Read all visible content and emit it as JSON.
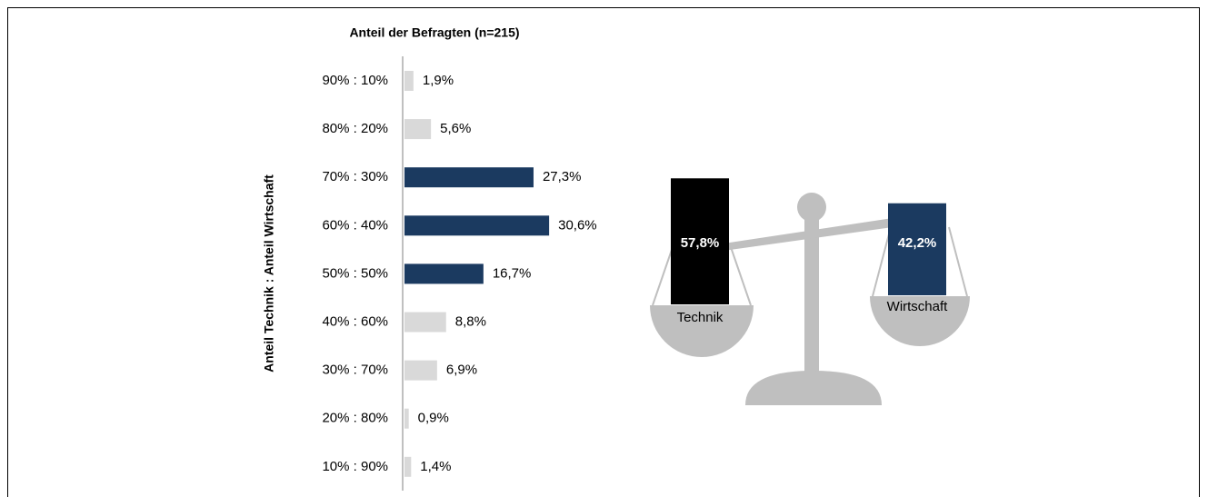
{
  "chart_data": [
    {
      "type": "bar",
      "orientation": "horizontal",
      "title": "Anteil der Befragten  (n=215)",
      "y_label": "Anteil Technik : Anteil Wirtschaft",
      "categories": [
        "90% : 10%",
        "80% : 20%",
        "70% : 30%",
        "60% : 40%",
        "50% : 50%",
        "40% : 60%",
        "30% : 70%",
        "20% : 80%",
        "10% : 90%"
      ],
      "values": [
        1.9,
        5.6,
        27.3,
        30.6,
        16.7,
        8.8,
        6.9,
        0.9,
        1.4
      ],
      "value_labels": [
        "1,9%",
        "5,6%",
        "27,3%",
        "30,6%",
        "16,7%",
        "8,8%",
        "6,9%",
        "0,9%",
        "1,4%"
      ],
      "colors": [
        "#d9d9d9",
        "#d9d9d9",
        "#1b3a60",
        "#1b3a60",
        "#1b3a60",
        "#d9d9d9",
        "#d9d9d9",
        "#d9d9d9",
        "#d9d9d9"
      ]
    },
    {
      "type": "balance",
      "categories": [
        "Technik",
        "Wirtschaft"
      ],
      "values": [
        57.8,
        42.2
      ],
      "value_labels": [
        "57,8%",
        "42,2%"
      ],
      "colors": [
        "#000000",
        "#1b3a60"
      ]
    }
  ]
}
